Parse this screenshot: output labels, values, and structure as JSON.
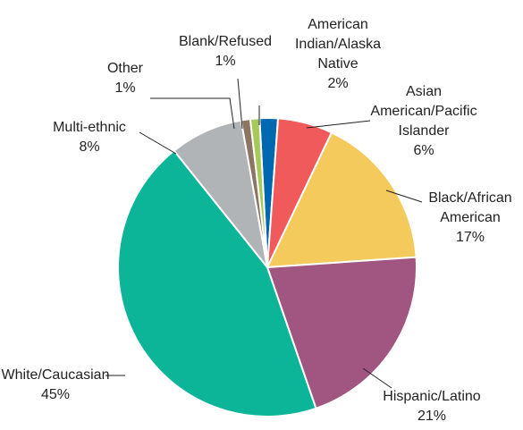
{
  "chart_data": {
    "type": "pie",
    "title": "",
    "slices": [
      {
        "label": "American Indian/Alaska Native",
        "value": 2,
        "display": "2%",
        "color": "#0067B1",
        "label_lines": [
          "American",
          "Indian/Alaska",
          "Native",
          "2%"
        ]
      },
      {
        "label": "Asian American/Pacific Islander",
        "value": 6,
        "display": "6%",
        "color": "#F05A5B",
        "label_lines": [
          "Asian",
          "American/Pacific",
          "Islander",
          "6%"
        ]
      },
      {
        "label": "Black/African American",
        "value": 17,
        "display": "17%",
        "color": "#F3CA5B",
        "label_lines": [
          "Black/African",
          "American",
          "17%"
        ]
      },
      {
        "label": "Hispanic/Latino",
        "value": 21,
        "display": "21%",
        "color": "#A15681",
        "label_lines": [
          "Hispanic/Latino",
          "21%"
        ]
      },
      {
        "label": "White/Caucasian",
        "value": 45,
        "display": "45%",
        "color": "#0CB498",
        "label_lines": [
          "White/Caucasian",
          "45%"
        ]
      },
      {
        "label": "Multi-ethnic",
        "value": 8,
        "display": "8%",
        "color": "#B1B4B6",
        "label_lines": [
          "Multi-ethnic",
          "8%"
        ]
      },
      {
        "label": "Other",
        "value": 1,
        "display": "1%",
        "color": "#8B7663",
        "label_lines": [
          "Other",
          "1%"
        ]
      },
      {
        "label": "Blank/Refused",
        "value": 1,
        "display": "1%",
        "color": "#A6C95A",
        "label_lines": [
          "Blank/Refused",
          "1%"
        ]
      }
    ]
  }
}
